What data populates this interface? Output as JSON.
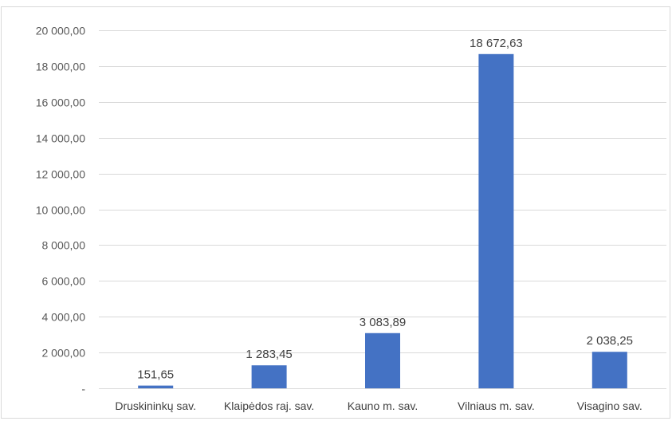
{
  "chart_data": {
    "type": "bar",
    "categories": [
      "Druskininkų sav.",
      "Klaipėdos raj. sav.",
      "Kauno m. sav.",
      "Vilniaus m. sav.",
      "Visagino sav."
    ],
    "values": [
      151.65,
      1283.45,
      3083.89,
      18672.63,
      2038.25
    ],
    "data_labels": [
      "151,65",
      "1 283,45",
      "3 083,89",
      "18 672,63",
      "2 038,25"
    ],
    "ylim": [
      0,
      20000
    ],
    "y_ticks": [
      0,
      2000,
      4000,
      6000,
      8000,
      10000,
      12000,
      14000,
      16000,
      18000,
      20000
    ],
    "y_tick_labels": [
      "-",
      "2 000,00",
      "4 000,00",
      "6 000,00",
      "8 000,00",
      "10 000,00",
      "12 000,00",
      "14 000,00",
      "16 000,00",
      "18 000,00",
      "20 000,00"
    ],
    "title": "",
    "xlabel": "",
    "ylabel": "",
    "grid": true,
    "legend": "none",
    "bar_color": "#4472C4",
    "grid_color": "#d9d9d9"
  }
}
